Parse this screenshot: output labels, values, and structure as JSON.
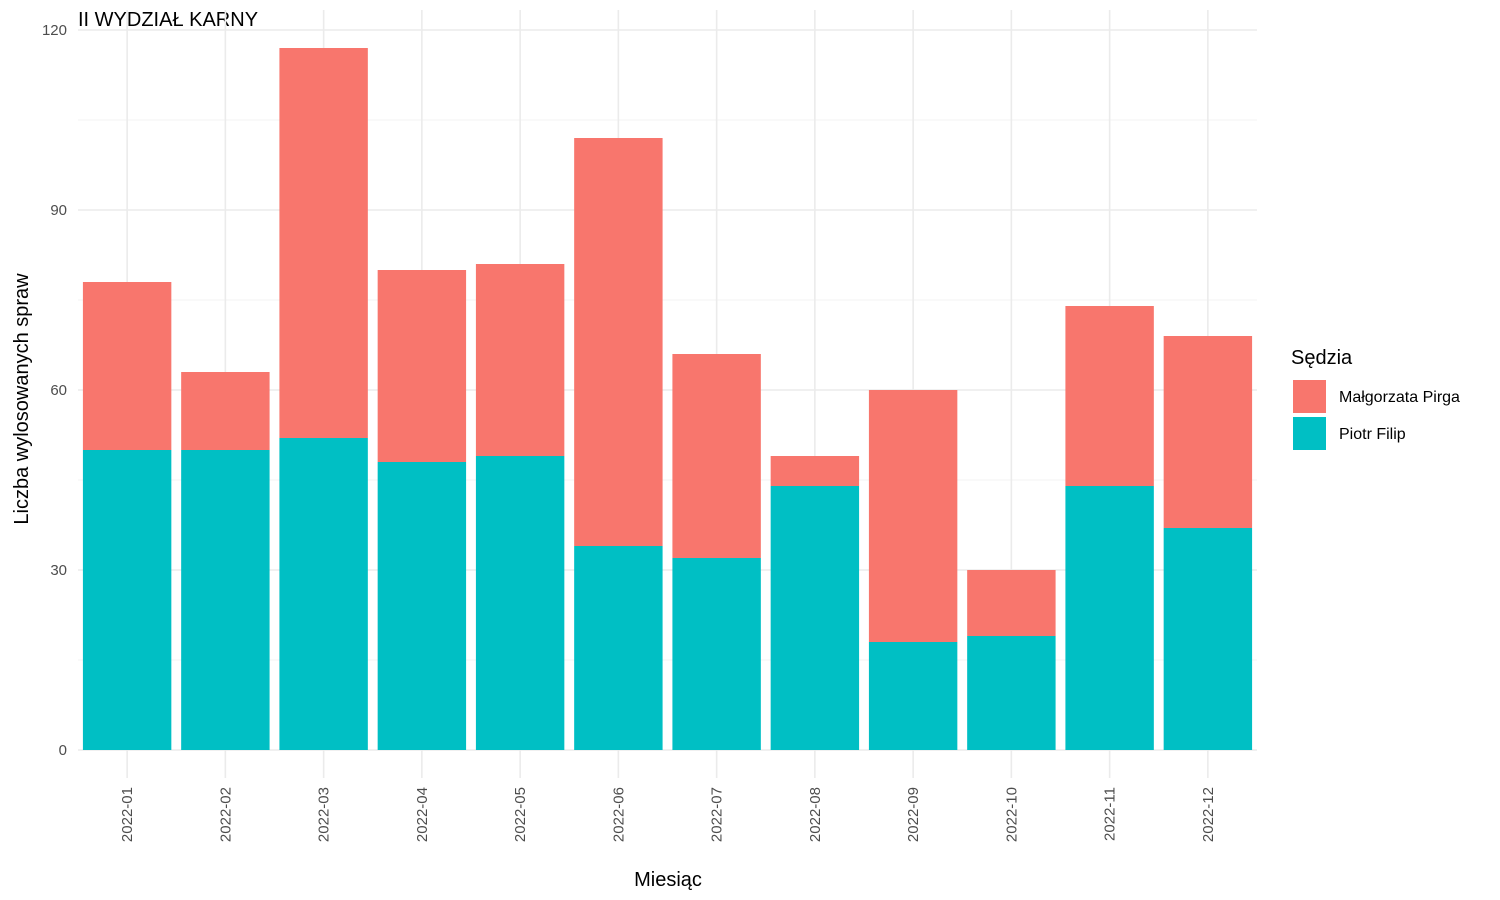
{
  "chart_data": {
    "type": "bar",
    "stacked": true,
    "title": "II WYDZIAŁ KARNY",
    "xlabel": "Miesiąc",
    "ylabel": "Liczba wylosowanych spraw",
    "categories": [
      "2022-01",
      "2022-02",
      "2022-03",
      "2022-04",
      "2022-05",
      "2022-06",
      "2022-07",
      "2022-08",
      "2022-09",
      "2022-10",
      "2022-11",
      "2022-12"
    ],
    "series": [
      {
        "name": "Piotr Filip",
        "color": "#00BFC4",
        "values": [
          50,
          50,
          52,
          48,
          49,
          34,
          32,
          44,
          18,
          19,
          44,
          37
        ]
      },
      {
        "name": "Małgorzata Pirga",
        "color": "#F8766D",
        "values": [
          28,
          13,
          65,
          32,
          32,
          68,
          34,
          5,
          42,
          11,
          30,
          32
        ]
      }
    ],
    "ylim": [
      0,
      120
    ],
    "yticks": [
      0,
      30,
      60,
      90,
      120
    ],
    "grid": true,
    "legend": {
      "title": "Sędzia",
      "placement": "right",
      "order": [
        "Małgorzata Pirga",
        "Piotr Filip"
      ]
    }
  }
}
